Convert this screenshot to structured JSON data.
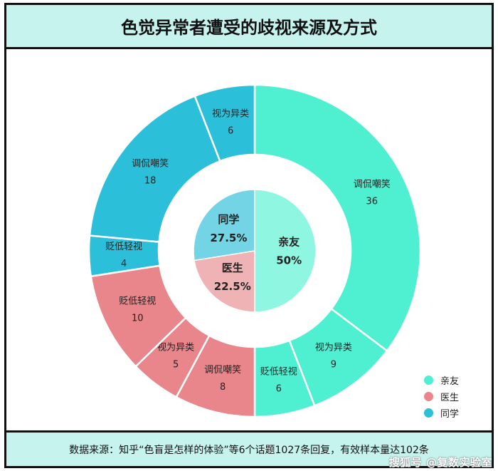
{
  "title": "色觉异常者遭受的歧视来源及方式",
  "source_note": "数据来源：知乎“色盲是怎样的体验”等6个话题1027条回复，有效样本量达102条",
  "watermark": "搜狐号 @复数实验室",
  "colors": {
    "亲友_outer": "#4ef0d1",
    "亲友_inner": "#8ff6e2",
    "医生_outer": "#e8868c",
    "医生_inner": "#efb3b6",
    "同学_outer": "#2cbfd9",
    "同学_inner": "#73d4e5",
    "legend_亲友": "#4ef0d1",
    "legend_医生": "#e8868c",
    "legend_同学": "#2cbfd9"
  },
  "chart_data": {
    "type": "pie",
    "title": "色觉异常者遭受的歧视来源及方式",
    "inner": [
      {
        "name": "亲友",
        "label": "50%",
        "value": 50
      },
      {
        "name": "医生",
        "label": "22.5%",
        "value": 22.5
      },
      {
        "name": "同学",
        "label": "27.5%",
        "value": 27.5
      }
    ],
    "outer": [
      {
        "group": "亲友",
        "name": "调侃嘲笑",
        "value": 36
      },
      {
        "group": "亲友",
        "name": "视为异类",
        "value": 9
      },
      {
        "group": "亲友",
        "name": "贬低轻视",
        "value": 6
      },
      {
        "group": "医生",
        "name": "调侃嘲笑",
        "value": 8
      },
      {
        "group": "医生",
        "name": "视为异类",
        "value": 5
      },
      {
        "group": "医生",
        "name": "贬低轻视",
        "value": 10
      },
      {
        "group": "同学",
        "name": "贬低轻视",
        "value": 4
      },
      {
        "group": "同学",
        "name": "调侃嘲笑",
        "value": 18
      },
      {
        "group": "同学",
        "name": "视为异类",
        "value": 6
      }
    ],
    "legend": [
      "亲友",
      "医生",
      "同学"
    ],
    "legend_position": "bottom-right"
  }
}
